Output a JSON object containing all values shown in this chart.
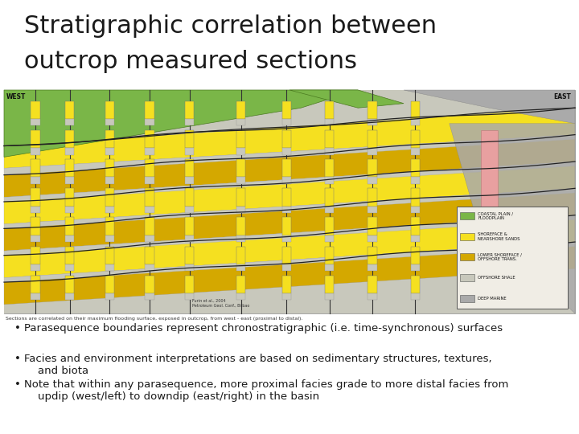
{
  "title_line1": "Stratigraphic correlation between",
  "title_line2": "outcrop measured sections",
  "title_fontsize": 22,
  "title_color": "#1a1a1a",
  "title_font": "sans-serif",
  "background_color": "#ffffff",
  "bullet_points": [
    "Parasequence boundaries represent chronostratigraphic (i.e. time-synchronous) surfaces",
    "Facies and environment interpretations are based on sedimentary structures, textures,\n    and biota",
    "Note that within any parasequence, more proximal facies grade to more distal facies from\n    updip (west/left) to downdip (east/right) in the basin"
  ],
  "bullet_fontsize": 9.5,
  "bullet_color": "#1a1a1a",
  "diagram_colors": {
    "green": "#7ab648",
    "yellow": "#f5e020",
    "dark_yellow": "#d4a800",
    "light_gray": "#c8c8bc",
    "mid_gray": "#aaaaaa",
    "pink": "#e8a0a0",
    "bg": "#dbd8cc",
    "tan": "#c8b87c"
  }
}
